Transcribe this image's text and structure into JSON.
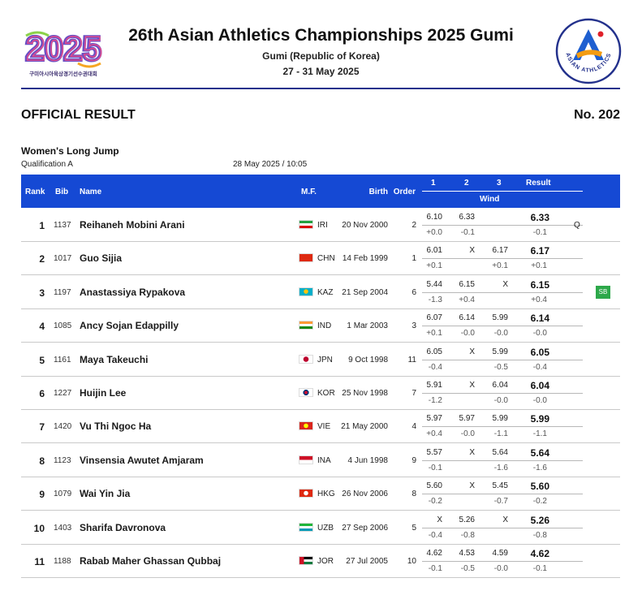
{
  "header": {
    "logo_text": "2025",
    "logo_subtitle": "구미아시아육상경기선수권대회",
    "title": "26th Asian Athletics Championships 2025 Gumi",
    "location": "Gumi (Republic of Korea)",
    "dates": "27 - 31 May 2025",
    "right_logo_text": "ASIAN ATHLETICS"
  },
  "document": {
    "label": "OFFICIAL RESULT",
    "number": "No. 202",
    "event": "Women's Long Jump",
    "round": "Qualification A",
    "datetime": "28 May 2025 / 10:05"
  },
  "table": {
    "headers": {
      "rank": "Rank",
      "bib": "Bib",
      "name": "Name",
      "mf": "M.F.",
      "birth": "Birth",
      "order": "Order",
      "att1": "1",
      "att2": "2",
      "att3": "3",
      "result": "Result",
      "wind": "Wind"
    },
    "rows": [
      {
        "rank": "1",
        "bib": "1137",
        "name": "Reihaneh Mobini Arani",
        "nat": "IRI",
        "birth": "20 Nov 2000",
        "order": "2",
        "a1": "6.10",
        "a2": "6.33",
        "a3": "",
        "w1": "+0.0",
        "w2": "-0.1",
        "w3": "",
        "result": "6.33",
        "result_wind": "-0.1",
        "qual": "Q",
        "badge": ""
      },
      {
        "rank": "2",
        "bib": "1017",
        "name": "Guo Sijia",
        "nat": "CHN",
        "birth": "14 Feb 1999",
        "order": "1",
        "a1": "6.01",
        "a2": "X",
        "a3": "6.17",
        "w1": "+0.1",
        "w2": "",
        "w3": "+0.1",
        "result": "6.17",
        "result_wind": "+0.1",
        "qual": "",
        "badge": ""
      },
      {
        "rank": "3",
        "bib": "1197",
        "name": "Anastassiya Rypakova",
        "nat": "KAZ",
        "birth": "21 Sep 2004",
        "order": "6",
        "a1": "5.44",
        "a2": "6.15",
        "a3": "X",
        "w1": "-1.3",
        "w2": "+0.4",
        "w3": "",
        "result": "6.15",
        "result_wind": "+0.4",
        "qual": "",
        "badge": "SB"
      },
      {
        "rank": "4",
        "bib": "1085",
        "name": "Ancy Sojan Edappilly",
        "nat": "IND",
        "birth": "1 Mar 2003",
        "order": "3",
        "a1": "6.07",
        "a2": "6.14",
        "a3": "5.99",
        "w1": "+0.1",
        "w2": "-0.0",
        "w3": "-0.0",
        "result": "6.14",
        "result_wind": "-0.0",
        "qual": "",
        "badge": ""
      },
      {
        "rank": "5",
        "bib": "1161",
        "name": "Maya Takeuchi",
        "nat": "JPN",
        "birth": "9 Oct 1998",
        "order": "11",
        "a1": "6.05",
        "a2": "X",
        "a3": "5.99",
        "w1": "-0.4",
        "w2": "",
        "w3": "-0.5",
        "result": "6.05",
        "result_wind": "-0.4",
        "qual": "",
        "badge": ""
      },
      {
        "rank": "6",
        "bib": "1227",
        "name": "Huijin Lee",
        "nat": "KOR",
        "birth": "25 Nov 1998",
        "order": "7",
        "a1": "5.91",
        "a2": "X",
        "a3": "6.04",
        "w1": "-1.2",
        "w2": "",
        "w3": "-0.0",
        "result": "6.04",
        "result_wind": "-0.0",
        "qual": "",
        "badge": ""
      },
      {
        "rank": "7",
        "bib": "1420",
        "name": "Vu Thi Ngoc Ha",
        "nat": "VIE",
        "birth": "21 May 2000",
        "order": "4",
        "a1": "5.97",
        "a2": "5.97",
        "a3": "5.99",
        "w1": "+0.4",
        "w2": "-0.0",
        "w3": "-1.1",
        "result": "5.99",
        "result_wind": "-1.1",
        "qual": "",
        "badge": ""
      },
      {
        "rank": "8",
        "bib": "1123",
        "name": "Vinsensia Awutet Amjaram",
        "nat": "INA",
        "birth": "4 Jun 1998",
        "order": "9",
        "a1": "5.57",
        "a2": "X",
        "a3": "5.64",
        "w1": "-0.1",
        "w2": "",
        "w3": "-1.6",
        "result": "5.64",
        "result_wind": "-1.6",
        "qual": "",
        "badge": ""
      },
      {
        "rank": "9",
        "bib": "1079",
        "name": "Wai Yin Jia",
        "nat": "HKG",
        "birth": "26 Nov 2006",
        "order": "8",
        "a1": "5.60",
        "a2": "X",
        "a3": "5.45",
        "w1": "-0.2",
        "w2": "",
        "w3": "-0.7",
        "result": "5.60",
        "result_wind": "-0.2",
        "qual": "",
        "badge": ""
      },
      {
        "rank": "10",
        "bib": "1403",
        "name": "Sharifa Davronova",
        "nat": "UZB",
        "birth": "27 Sep 2006",
        "order": "5",
        "a1": "X",
        "a2": "5.26",
        "a3": "X",
        "w1": "-0.4",
        "w2": "-0.8",
        "w3": "",
        "result": "5.26",
        "result_wind": "-0.8",
        "qual": "",
        "badge": ""
      },
      {
        "rank": "11",
        "bib": "1188",
        "name": "Rabab Maher Ghassan Qubbaj",
        "nat": "JOR",
        "birth": "27 Jul 2005",
        "order": "10",
        "a1": "4.62",
        "a2": "4.53",
        "a3": "4.59",
        "w1": "-0.1",
        "w2": "-0.5",
        "w3": "-0.0",
        "result": "4.62",
        "result_wind": "-0.1",
        "qual": "",
        "badge": ""
      }
    ]
  },
  "flag_colors": {
    "IRI": [
      "#239f40",
      "#ffffff",
      "#da0000"
    ],
    "CHN": [
      "#de2910"
    ],
    "KAZ": [
      "#00afca"
    ],
    "IND": [
      "#ff9933",
      "#ffffff",
      "#138808"
    ],
    "JPN": [
      "#ffffff",
      "#bc002d"
    ],
    "KOR": [
      "#ffffff",
      "#003478",
      "#c60c30"
    ],
    "VIE": [
      "#da251d",
      "#ffff00"
    ],
    "INA": [
      "#ce1126",
      "#ffffff"
    ],
    "HKG": [
      "#de2910",
      "#ffffff"
    ],
    "UZB": [
      "#1eb53a",
      "#ffffff",
      "#0099b5"
    ],
    "JOR": [
      "#000000",
      "#ffffff",
      "#007a3d",
      "#ce1126"
    ]
  },
  "colors": {
    "header_bar": "#1549d4",
    "rule": "#23318c",
    "sb_badge": "#2da84a"
  }
}
